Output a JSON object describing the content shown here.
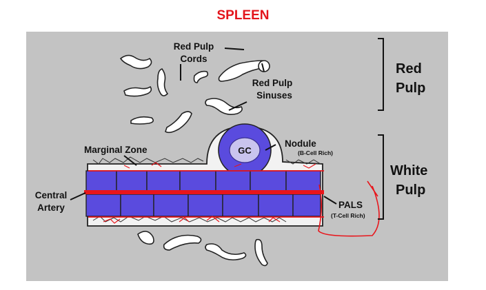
{
  "title": "SPLEEN",
  "labels": {
    "red_pulp_cords": [
      "Red Pulp",
      "Cords"
    ],
    "red_pulp_sinuses": [
      "Red Pulp",
      "Sinuses"
    ],
    "nodule": "Nodule",
    "nodule_note": "(B-Cell Rich)",
    "gc": "GC",
    "marginal_zone": "Marginal Zone",
    "central_artery": [
      "Central",
      "Artery"
    ],
    "pals": "PALS",
    "pals_note": "(T-Cell Rich)",
    "red_pulp_region": [
      "Red",
      "Pulp"
    ],
    "white_pulp_region": [
      "White",
      "Pulp"
    ]
  },
  "colors": {
    "background_panel": "#c3c3c3",
    "white_pulp_blue": "#5a4bde",
    "artery_red": "#e8151b",
    "title_red": "#e3141b"
  }
}
